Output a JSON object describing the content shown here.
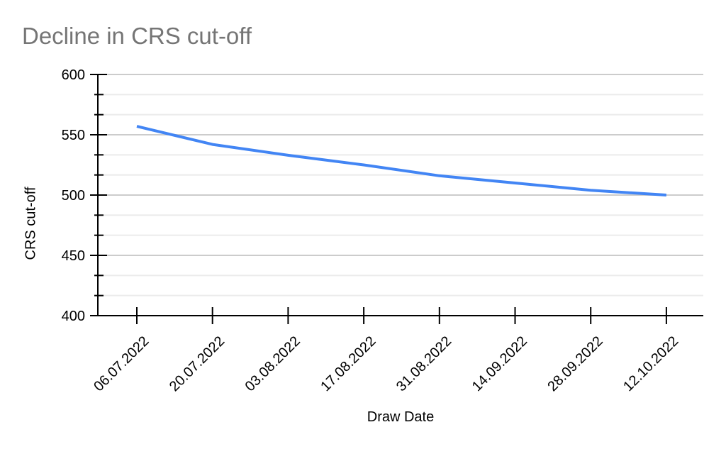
{
  "chart_data": {
    "type": "line",
    "title": "Decline in CRS cut-off",
    "xlabel": "Draw Date",
    "ylabel": "CRS cut-off",
    "categories": [
      "06.07.2022",
      "20.07.2022",
      "03.08.2022",
      "17.08.2022",
      "31.08.2022",
      "14.09.2022",
      "28.09.2022",
      "12.10.2022"
    ],
    "series": [
      {
        "name": "CRS cut-off",
        "values": [
          557,
          542,
          533,
          525,
          516,
          510,
          504,
          500
        ]
      }
    ],
    "ylim": [
      400,
      600
    ],
    "y_major_step": 50,
    "y_minor_divisions": 3,
    "y_tick_labels": [
      "400",
      "450",
      "500",
      "550",
      "600"
    ],
    "grid": true,
    "legend": "none",
    "x_labels_rotation_deg": -45,
    "colors": {
      "series": "#4285f4",
      "grid_major": "#cccccc",
      "grid_minor": "#ebebeb",
      "axis": "#000000",
      "title_text": "#757575",
      "label_text": "#000000",
      "background": "#ffffff"
    }
  }
}
